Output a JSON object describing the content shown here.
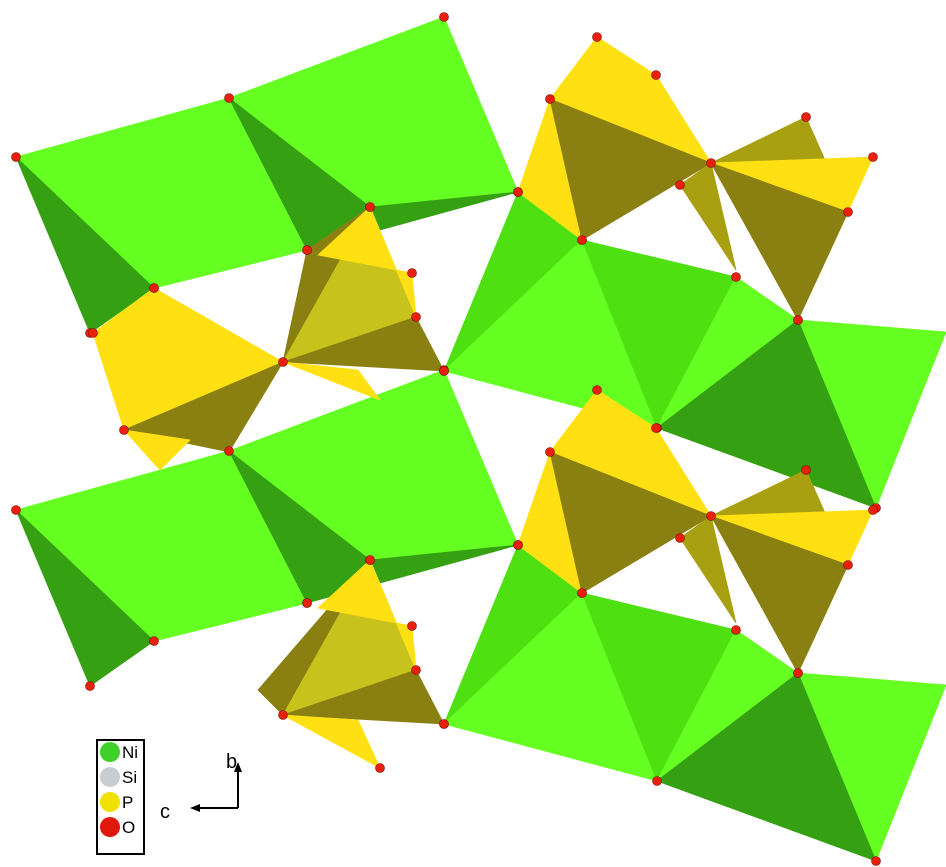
{
  "legend": {
    "items": [
      {
        "symbol": "Ni",
        "color": "#3fd12a"
      },
      {
        "symbol": "Si",
        "color": "#c8cdd2"
      },
      {
        "symbol": "P",
        "color": "#f2e000"
      },
      {
        "symbol": "O",
        "color": "#e0180c"
      }
    ]
  },
  "axes": {
    "vertical_label": "b",
    "horizontal_label": "c"
  },
  "colors": {
    "octa_light": "#66ff22",
    "octa_mid": "#4fe012",
    "octa_dark": "#35a012",
    "tetra_bright": "#ffe012",
    "tetra_mid": "#c8c21c",
    "tetra_olive": "#8a8012",
    "tetra_khaki": "#a8a010",
    "oxygen": "#e8200c",
    "outline": "#2a2a2a"
  }
}
